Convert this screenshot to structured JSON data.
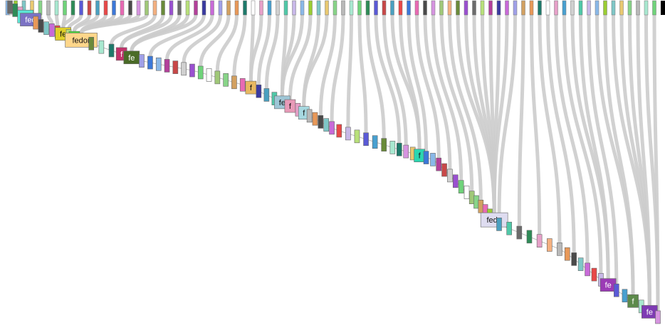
{
  "diagram": {
    "kind": "flow-tree",
    "link_color": "#cccccc",
    "labeled_nodes": [
      {
        "label": "fe",
        "color": "#5ce6d6",
        "level": 3
      },
      {
        "label": "fed",
        "color": "#7b72c4",
        "level": 4
      },
      {
        "label": "fe",
        "color": "#e0d02a",
        "level": 10
      },
      {
        "label": "f",
        "color": "#43e038",
        "level": 12
      },
      {
        "label": "fedor",
        "color": "#ffd68a",
        "level": 13
      },
      {
        "label": "f",
        "color": "#c2336b",
        "level": 17
      },
      {
        "label": "fe",
        "color": "#4a6b27",
        "level": 18
      },
      {
        "label": "f",
        "color": "#e8b860",
        "level": 32
      },
      {
        "label": "fe",
        "color": "#9ec6d6",
        "level": 36
      },
      {
        "label": "f",
        "color": "#e89ab8",
        "level": 37
      },
      {
        "label": "f",
        "color": "#a6d8e0",
        "level": 39
      },
      {
        "label": "f",
        "color": "#2bd6b0",
        "level": 55
      },
      {
        "label": "fedo",
        "color": "#dedcf0",
        "level": 69
      },
      {
        "label": "fe",
        "color": "#9b3bb5",
        "level": 83
      },
      {
        "label": "f",
        "color": "#5c8a4a",
        "level": 86
      },
      {
        "label": "fe",
        "color": "#7e3bb3",
        "level": 88
      }
    ],
    "palette": [
      "#6b6b6b",
      "#e86ab4",
      "#6fd37a",
      "#8ab8e8",
      "#1e7a6b",
      "#b8e07a",
      "#4a4a4a",
      "#2e8b57",
      "#9acd32",
      "#ffffff",
      "#b3409a",
      "#d694e0",
      "#5a5ad6",
      "#7fc7c7",
      "#e6a0c8",
      "#3a3aa0",
      "#a0c878",
      "#c84848",
      "#e8c870",
      "#48a0d0",
      "#c86ad8",
      "#f4b080",
      "#4aa0c0",
      "#88d488",
      "#d0d0d0",
      "#a0a0e8",
      "#6a8a3a",
      "#e84848",
      "#b8b8b8",
      "#50c8a8",
      "#d2a060",
      "#9a50d0",
      "#3c78d8",
      "#a8e8d0",
      "#c8b8e8",
      "#e89858"
    ]
  }
}
